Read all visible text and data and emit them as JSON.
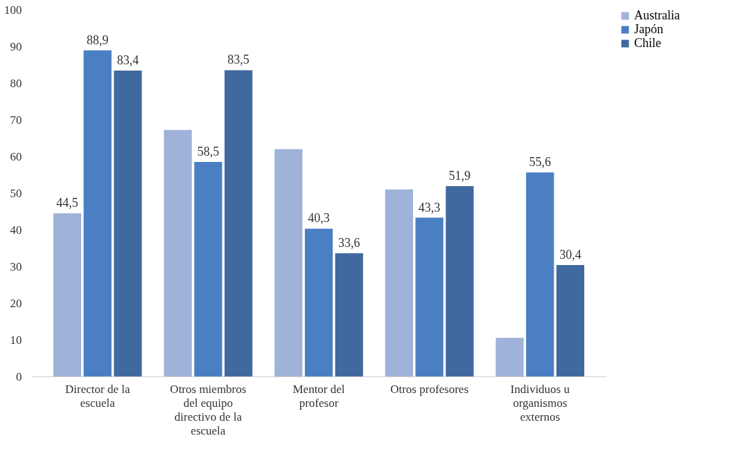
{
  "chart_data": {
    "type": "bar",
    "categories": [
      "Director de la escuela",
      "Otros miembros del equipo directivo de la escuela",
      "Mentor del profesor",
      "Otros profesores",
      "Individuos u organismos externos"
    ],
    "series": [
      {
        "name": "Australia",
        "color": "#9fb3d9",
        "values": [
          44.5,
          67.2,
          62.0,
          51.0,
          10.5
        ],
        "value_labels": [
          "44,5",
          null,
          null,
          null,
          null
        ]
      },
      {
        "name": "Japón",
        "color": "#4a7fc4",
        "values": [
          88.9,
          58.5,
          40.3,
          43.3,
          55.6
        ],
        "value_labels": [
          "88,9",
          "58,5",
          "40,3",
          "43,3",
          "55,6"
        ]
      },
      {
        "name": "Chile",
        "color": "#40699f",
        "values": [
          83.4,
          83.5,
          33.6,
          51.9,
          30.4
        ],
        "value_labels": [
          "83,4",
          "83,5",
          "33,6",
          "51,9",
          "30,4"
        ]
      }
    ],
    "ylim": [
      0,
      100
    ],
    "yticks": [
      0,
      10,
      20,
      30,
      40,
      50,
      60,
      70,
      80,
      90,
      100
    ],
    "grid": false,
    "legend": "right"
  }
}
